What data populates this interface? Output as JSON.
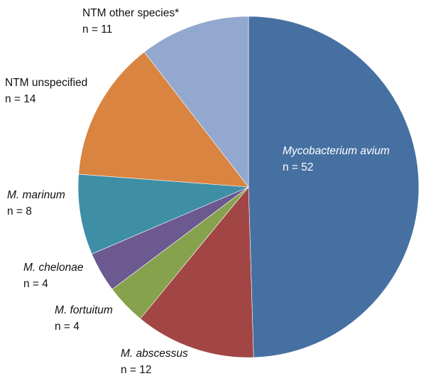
{
  "chart_data": {
    "type": "pie",
    "title": "",
    "start": "12 o'clock, clockwise",
    "slices": [
      {
        "name": "Mycobacterium avium",
        "count_label": "n = 52",
        "value": 52,
        "color": "#4570a1",
        "italic": true
      },
      {
        "name": "M. abscessus",
        "count_label": "n = 12",
        "value": 12,
        "color": "#a24645",
        "italic": true
      },
      {
        "name": "M. fortuitum",
        "count_label": "n = 4",
        "value": 4,
        "color": "#86a24d",
        "italic": true
      },
      {
        "name": "M. chelonae",
        "count_label": "n = 4",
        "value": 4,
        "color": "#6c5990",
        "italic": true
      },
      {
        "name": "M. marinum",
        "count_label": "n = 8",
        "value": 8,
        "color": "#3e8ea5",
        "italic": true
      },
      {
        "name": "NTM unspecified",
        "count_label": "n = 14",
        "value": 14,
        "color": "#d98440",
        "italic": false
      },
      {
        "name": "NTM other species*",
        "count_label": "n = 11",
        "value": 11,
        "color": "#92a8cf",
        "italic": false
      }
    ]
  }
}
